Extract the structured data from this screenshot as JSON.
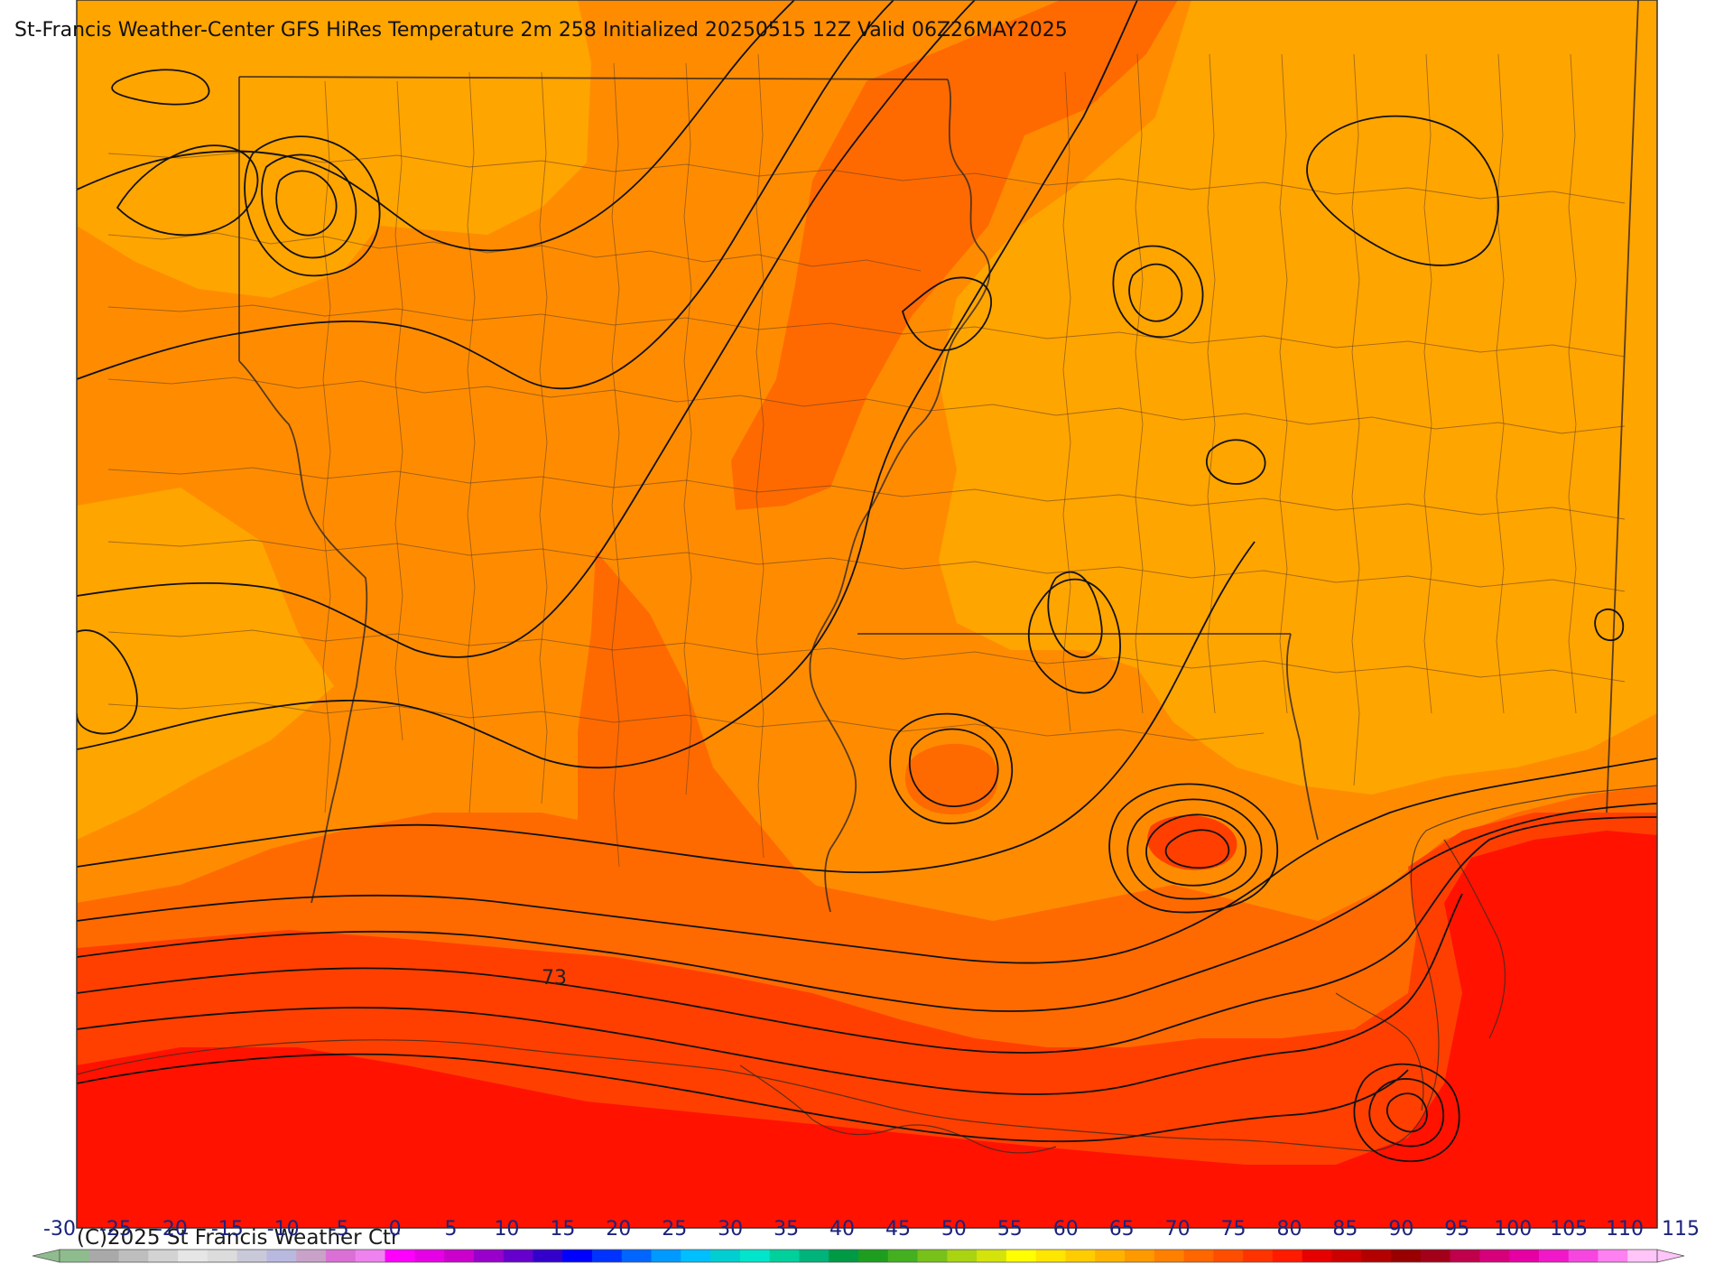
{
  "title": "St-Francis Weather-Center GFS HiRes Temperature 2m  258 Initialized 20250515 12Z Valid 06Z26MAY2025",
  "copyright": "(C)2025 St Francis Weather Ctr",
  "contour_label": "73",
  "colorbar": {
    "ticks": [
      "-30",
      "-25",
      "-20",
      "-15",
      "-10",
      "-5",
      "0",
      "5",
      "10",
      "15",
      "20",
      "25",
      "30",
      "35",
      "40",
      "45",
      "50",
      "55",
      "60",
      "65",
      "70",
      "75",
      "80",
      "85",
      "90",
      "95",
      "100",
      "105",
      "110",
      "115"
    ],
    "colors": [
      "#8fbc8f",
      "#a9a9a9",
      "#bebebe",
      "#d3d3d3",
      "#e6e6e6",
      "#dcdcdc",
      "#c9c9d9",
      "#b9b9e0",
      "#c8a2c8",
      "#da70d6",
      "#ee82ee",
      "#ff00ff",
      "#e600e6",
      "#cc00cc",
      "#9900cc",
      "#6600cc",
      "#3300cc",
      "#0000ff",
      "#0033ff",
      "#0066ff",
      "#0099ff",
      "#00bfff",
      "#00ced1",
      "#00e5cc",
      "#00d09b",
      "#00b37a",
      "#009944",
      "#1e9e1e",
      "#44b020",
      "#77c11a",
      "#aad312",
      "#d4e30a",
      "#ffff00",
      "#ffe600",
      "#ffcc00",
      "#ffb300",
      "#ff9900",
      "#ff8000",
      "#ff6600",
      "#ff4d00",
      "#ff3300",
      "#ff1a00",
      "#e60000",
      "#cc0000",
      "#b30000",
      "#990000",
      "#a3001a",
      "#c0004a",
      "#d6007a",
      "#e600a3",
      "#f018c8",
      "#f745e0",
      "#ff80f0",
      "#ffc4f8"
    ]
  },
  "legend_levels": [
    {
      "min": 75,
      "max": 80,
      "color": "#ffa500"
    },
    {
      "min": 80,
      "max": 85,
      "color": "#ff8c00"
    },
    {
      "min": 85,
      "max": 90,
      "color": "#ff6a00"
    },
    {
      "min": 90,
      "max": 95,
      "color": "#ff3f00"
    },
    {
      "min": 95,
      "max": 100,
      "color": "#ff1200"
    }
  ]
}
